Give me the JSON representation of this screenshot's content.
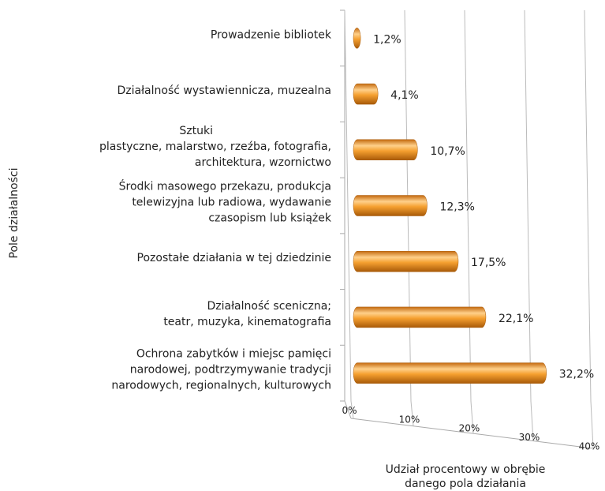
{
  "chart_data": {
    "type": "bar",
    "orientation": "horizontal",
    "style": "3d-cylinder",
    "categories": [
      [
        "Prowadzenie bibliotek"
      ],
      [
        "Działalność wystawiennicza, muzealna"
      ],
      [
        "Sztuki",
        "plastyczne, malarstwo, rzeźba, fotografia,",
        "architektura, wzornictwo"
      ],
      [
        "Środki masowego przekazu, produkcja",
        "telewizyjna lub radiowa, wydawanie",
        "czasopism lub książek"
      ],
      [
        "Pozostałe działania w tej dziedzinie"
      ],
      [
        "Działalność sceniczna;",
        "teatr, muzyka, kinematografia"
      ],
      [
        "Ochrona zabytków i miejsc pamięci",
        "narodowej, podtrzymywanie tradycji",
        "narodowych, regionalnych, kulturowych"
      ]
    ],
    "values": [
      1.2,
      4.1,
      10.7,
      12.3,
      17.5,
      22.1,
      32.2
    ],
    "value_labels": [
      "1,2%",
      "4,1%",
      "10,7%",
      "12,3%",
      "17,5%",
      "22,1%",
      "32,2%"
    ],
    "color": "#f5a030",
    "xlim": [
      0,
      40
    ],
    "xticks": [
      {
        "value": 0,
        "label": "0%"
      },
      {
        "value": 10,
        "label": "10%"
      },
      {
        "value": 20,
        "label": "20%"
      },
      {
        "value": 30,
        "label": "30%"
      },
      {
        "value": 40,
        "label": "40%"
      }
    ],
    "grid": true,
    "ylabel": "Pole działalności",
    "xlabel": [
      "Udział procentowy w obrębie",
      "danego pola działania"
    ]
  }
}
